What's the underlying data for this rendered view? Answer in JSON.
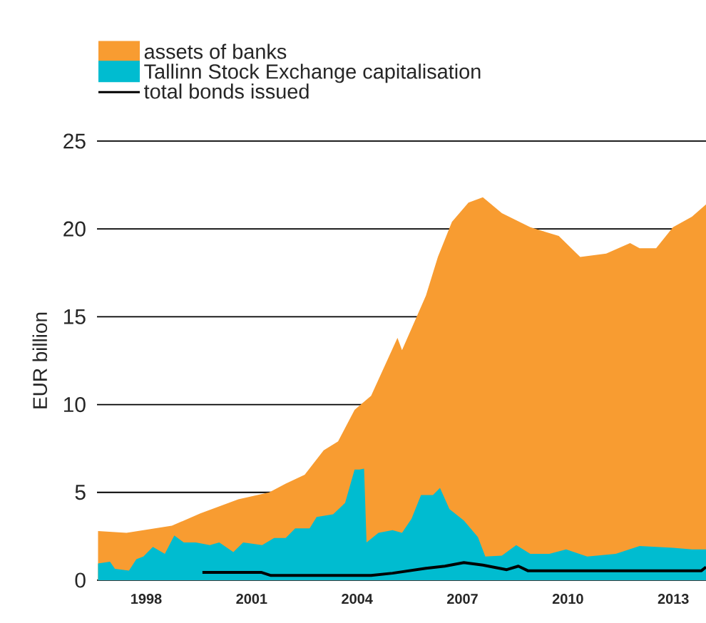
{
  "chart_data": {
    "type": "area",
    "ylabel": "EUR billion",
    "xlim": [
      1997.1,
      2014.43
    ],
    "ylim": [
      0,
      25
    ],
    "yticks": [
      0,
      5,
      10,
      15,
      20,
      25
    ],
    "xticks": [
      {
        "value": 1998.5,
        "label": "1998"
      },
      {
        "value": 2001.5,
        "label": "2001"
      },
      {
        "value": 2004.5,
        "label": "2004"
      },
      {
        "value": 2007.5,
        "label": "2007"
      },
      {
        "value": 2010.5,
        "label": "2010"
      },
      {
        "value": 2013.5,
        "label": "2013"
      }
    ],
    "grid": "y",
    "legend": "top left",
    "series": [
      {
        "name": "assets of banks",
        "color": "#f89c31",
        "x": [
          1997.13,
          1997.94,
          1999.23,
          2000.04,
          2001.12,
          2002.0,
          2002.47,
          2003.01,
          2003.55,
          2003.96,
          2004.43,
          2004.9,
          2005.65,
          2005.78,
          2006.46,
          2006.8,
          2007.2,
          2007.67,
          2008.08,
          2008.62,
          2009.43,
          2010.24,
          2010.85,
          2011.59,
          2012.27,
          2012.54,
          2013.01,
          2013.49,
          2014.03,
          2014.43
        ],
        "values": [
          2.8,
          2.7,
          3.1,
          3.8,
          4.6,
          5.0,
          5.5,
          6.0,
          7.4,
          7.9,
          9.7,
          10.5,
          13.8,
          13.1,
          16.2,
          18.4,
          20.4,
          21.5,
          21.8,
          20.9,
          20.1,
          19.6,
          18.4,
          18.6,
          19.2,
          18.9,
          18.9,
          20.1,
          20.7,
          21.4
        ]
      },
      {
        "name": "Tallinn Stock Exchange capitalisation",
        "color": "#00bcd0",
        "x": [
          1997.13,
          1997.47,
          1997.61,
          1998.01,
          1998.22,
          1998.42,
          1998.69,
          1999.03,
          1999.3,
          1999.57,
          1999.91,
          2000.31,
          2000.58,
          2000.98,
          2001.26,
          2001.8,
          2002.14,
          2002.47,
          2002.74,
          2003.15,
          2003.35,
          2003.82,
          2004.16,
          2004.43,
          2004.57,
          2004.7,
          2004.77,
          2005.11,
          2005.51,
          2005.78,
          2006.05,
          2006.32,
          2006.66,
          2006.86,
          2007.13,
          2007.54,
          2007.94,
          2008.15,
          2008.62,
          2009.03,
          2009.43,
          2009.97,
          2010.45,
          2011.05,
          2011.86,
          2012.54,
          2013.49,
          2014.03,
          2014.43
        ],
        "values": [
          0.95,
          1.05,
          0.65,
          0.55,
          1.2,
          1.35,
          1.9,
          1.5,
          2.55,
          2.15,
          2.15,
          2.0,
          2.15,
          1.6,
          2.15,
          2.0,
          2.4,
          2.4,
          2.95,
          2.95,
          3.6,
          3.75,
          4.4,
          6.3,
          6.3,
          6.35,
          2.15,
          2.7,
          2.85,
          2.7,
          3.5,
          4.85,
          4.85,
          5.25,
          4.05,
          3.4,
          2.45,
          1.35,
          1.4,
          2.0,
          1.5,
          1.5,
          1.75,
          1.35,
          1.5,
          1.95,
          1.85,
          1.75,
          1.75
        ]
      },
      {
        "name": "total bonds issued",
        "type": "line",
        "color": "#000000",
        "x": [
          2000.1,
          2001.77,
          2002.05,
          2004.9,
          2005.51,
          2006.46,
          2007.0,
          2007.54,
          2008.08,
          2008.76,
          2009.09,
          2009.36,
          2014.3,
          2014.43
        ],
        "values": [
          0.45,
          0.45,
          0.27,
          0.27,
          0.4,
          0.68,
          0.8,
          1.0,
          0.86,
          0.6,
          0.8,
          0.54,
          0.54,
          0.75
        ]
      }
    ]
  }
}
